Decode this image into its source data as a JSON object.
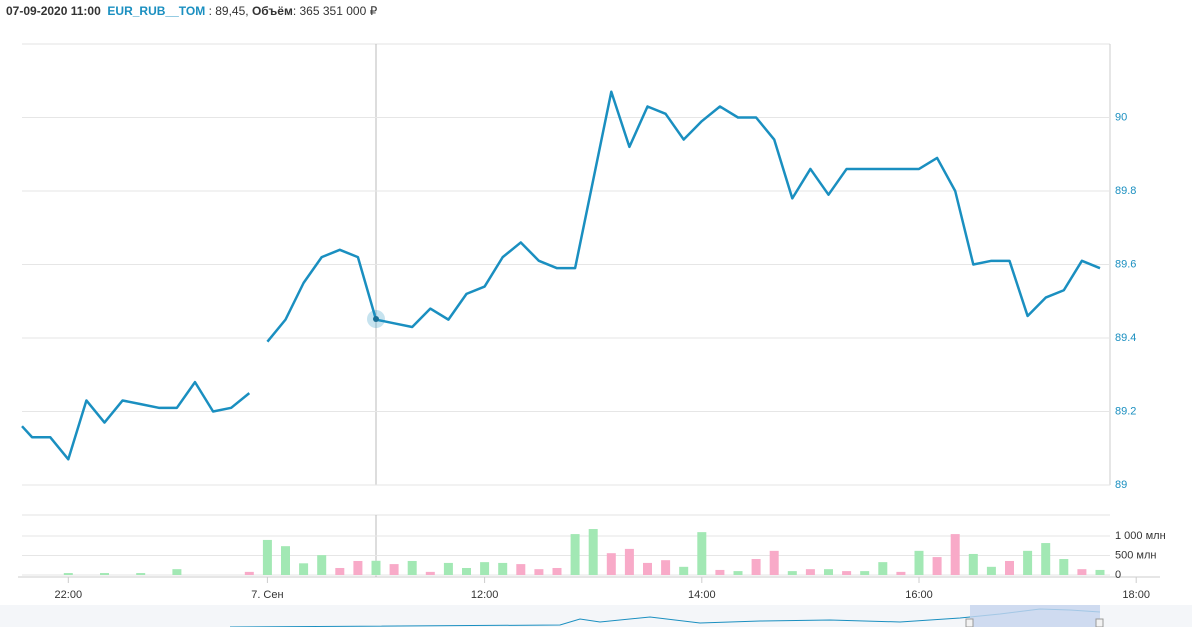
{
  "header": {
    "datetime": "07-09-2020 11:00",
    "ticker": "EUR_RUB__TOM",
    "price": ": 89,45,",
    "volume_label": "Объём",
    "volume": ": 365 351 000 ₽"
  },
  "chart_data": [
    {
      "type": "line",
      "ylim": [
        89,
        90.2
      ],
      "yticks": [
        89,
        89.2,
        89.4,
        89.6,
        89.8,
        90
      ],
      "grid": true,
      "series": [
        {
          "color": "#1a8fc0",
          "values": [
            89.16,
            89.13,
            89.13,
            89.07,
            89.23,
            89.17,
            89.23,
            89.22,
            89.21,
            89.21,
            89.28,
            89.2,
            89.21,
            89.25,
            null,
            null,
            null,
            null,
            null,
            null,
            null,
            null,
            null,
            null,
            null,
            null,
            null,
            null,
            null,
            null,
            null,
            null,
            null,
            null,
            null,
            null,
            null,
            null,
            null,
            null,
            null,
            null,
            null,
            null,
            null,
            null,
            null,
            null,
            null,
            null,
            null,
            null,
            null,
            null,
            null,
            null,
            null,
            null,
            null,
            null,
            null,
            null,
            null
          ]
        },
        {
          "color": "#1a8fc0",
          "values": [
            null,
            null,
            null,
            null,
            null,
            null,
            null,
            null,
            null,
            null,
            null,
            null,
            null,
            null,
            89.39,
            89.45,
            89.55,
            89.62,
            89.64,
            89.62,
            89.45,
            89.44,
            89.43,
            89.48,
            89.45,
            89.52,
            89.54,
            89.62,
            89.66,
            89.61,
            89.59,
            89.59,
            89.83,
            90.07,
            89.92,
            90.03,
            90.01,
            89.94,
            89.99,
            90.03,
            90,
            90,
            89.94,
            89.78,
            89.86,
            89.79,
            89.86,
            89.86,
            89.86,
            89.86,
            89.86,
            89.89,
            89.8,
            89.6,
            89.61,
            89.61,
            89.46,
            89.51,
            89.53,
            89.61,
            89.59,
            null,
            null
          ]
        }
      ]
    },
    {
      "type": "bar",
      "ylim": [
        0,
        1540
      ],
      "yticks": [
        {
          "value": 0,
          "label": "0"
        },
        {
          "value": 500,
          "label": "500 млн"
        },
        {
          "value": 1000,
          "label": "1 000 млн"
        }
      ],
      "grid": true,
      "categories": [
        null,
        null,
        null,
        "22:00",
        null,
        null,
        null,
        null,
        null,
        null,
        null,
        null,
        null,
        null,
        "7. Сен",
        null,
        null,
        null,
        null,
        null,
        null,
        null,
        null,
        null,
        null,
        null,
        "12:00",
        null,
        null,
        null,
        null,
        null,
        null,
        null,
        null,
        null,
        null,
        null,
        "14:00",
        null,
        null,
        null,
        null,
        null,
        null,
        null,
        null,
        null,
        null,
        null,
        "16:00",
        null,
        null,
        null,
        null,
        null,
        null,
        null,
        null,
        null,
        null,
        null,
        "18:00"
      ],
      "series": [
        {
          "color": "#a2e8b4",
          "values": [
            null,
            null,
            null,
            50,
            null,
            50,
            null,
            50,
            null,
            150,
            null,
            null,
            null,
            null,
            900,
            740,
            300,
            510,
            null,
            null,
            365,
            null,
            360,
            null,
            310,
            180,
            330,
            310,
            null,
            null,
            null,
            1050,
            1180,
            null,
            null,
            null,
            null,
            210,
            1100,
            null,
            100,
            null,
            null,
            100,
            null,
            150,
            null,
            100,
            330,
            null,
            620,
            null,
            null,
            540,
            210,
            null,
            620,
            820,
            410,
            null,
            130,
            null,
            null
          ]
        },
        {
          "color": "#f8aac8",
          "values": [
            null,
            null,
            null,
            null,
            null,
            null,
            null,
            null,
            null,
            null,
            null,
            null,
            null,
            80,
            null,
            null,
            null,
            null,
            180,
            360,
            null,
            280,
            null,
            80,
            null,
            null,
            null,
            null,
            280,
            150,
            180,
            null,
            null,
            560,
            670,
            310,
            380,
            null,
            null,
            130,
            null,
            410,
            620,
            null,
            150,
            null,
            100,
            null,
            null,
            80,
            null,
            460,
            1050,
            null,
            null,
            360,
            null,
            null,
            null,
            150,
            null,
            null,
            null
          ]
        }
      ]
    }
  ]
}
